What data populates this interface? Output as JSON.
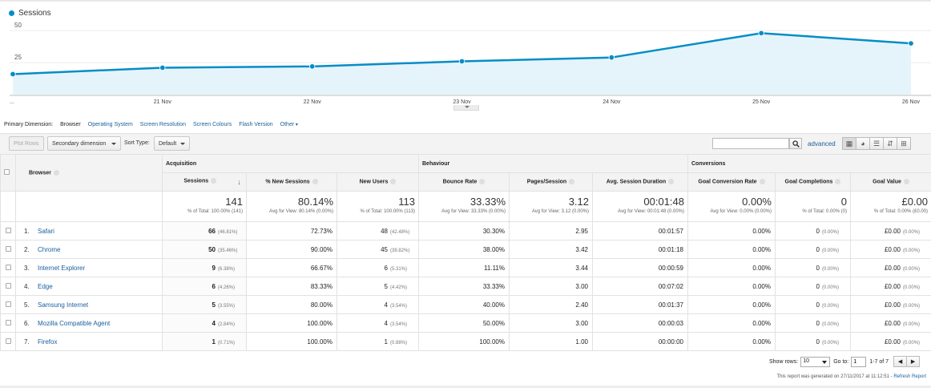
{
  "chart": {
    "legend": "Sessions",
    "color": "#058dc7",
    "fill": "#e5f4fb"
  },
  "chart_data": {
    "type": "area",
    "title": "",
    "series": [
      {
        "name": "Sessions",
        "values": [
          16,
          21,
          22,
          26,
          29,
          48,
          40
        ]
      }
    ],
    "x_labels": [
      "...",
      "21 Nov",
      "22 Nov",
      "23 Nov",
      "24 Nov",
      "25 Nov",
      "26 Nov"
    ],
    "y_ticks": [
      25,
      50
    ],
    "ylim": [
      0,
      67
    ],
    "grid": true
  },
  "primary_dimension": {
    "label": "Primary Dimension:",
    "current": "Browser",
    "options": [
      "Operating System",
      "Screen Resolution",
      "Screen Colours",
      "Flash Version",
      "Other"
    ]
  },
  "toolbar": {
    "plot_rows": "Plot Rows",
    "secondary_dimension": "Secondary dimension",
    "sort_type_label": "Sort Type:",
    "sort_type_value": "Default",
    "search_value": "",
    "advanced": "advanced"
  },
  "table": {
    "groups": {
      "acquisition": "Acquisition",
      "behaviour": "Behaviour",
      "conversions": "Conversions"
    },
    "dimension_header": "Browser",
    "columns": [
      "Sessions",
      "% New Sessions",
      "New Users",
      "Bounce Rate",
      "Pages/Session",
      "Avg. Session Duration",
      "Goal Conversion Rate",
      "Goal Completions",
      "Goal Value"
    ],
    "totals": [
      {
        "value": "141",
        "sub": "% of Total: 100.00% (141)"
      },
      {
        "value": "80.14%",
        "sub": "Avg for View: 80.14% (0.00%)"
      },
      {
        "value": "113",
        "sub": "% of Total: 100.00% (113)"
      },
      {
        "value": "33.33%",
        "sub": "Avg for View: 33.33% (0.00%)"
      },
      {
        "value": "3.12",
        "sub": "Avg for View: 3.12 (0.00%)"
      },
      {
        "value": "00:01:48",
        "sub": "Avg for View: 00:01:48 (0.00%)"
      },
      {
        "value": "0.00%",
        "sub": "Avg for View: 0.00% (0.00%)"
      },
      {
        "value": "0",
        "sub": "% of Total: 0.00% (0)"
      },
      {
        "value": "£0.00",
        "sub": "% of Total: 0.00% (£0.00)"
      }
    ],
    "rows": [
      {
        "idx": "1.",
        "browser": "Safari",
        "sessions": "66",
        "sessions_pct": "(46.81%)",
        "new_sessions": "72.73%",
        "new_users": "48",
        "new_users_pct": "(42.48%)",
        "bounce": "30.30%",
        "pages": "2.95",
        "duration": "00:01:57",
        "gcr": "0.00%",
        "gc": "0",
        "gc_pct": "(0.00%)",
        "gv": "£0.00",
        "gv_pct": "(0.00%)"
      },
      {
        "idx": "2.",
        "browser": "Chrome",
        "sessions": "50",
        "sessions_pct": "(35.46%)",
        "new_sessions": "90.00%",
        "new_users": "45",
        "new_users_pct": "(39.82%)",
        "bounce": "38.00%",
        "pages": "3.42",
        "duration": "00:01:18",
        "gcr": "0.00%",
        "gc": "0",
        "gc_pct": "(0.00%)",
        "gv": "£0.00",
        "gv_pct": "(0.00%)"
      },
      {
        "idx": "3.",
        "browser": "Internet Explorer",
        "sessions": "9",
        "sessions_pct": "(6.38%)",
        "new_sessions": "66.67%",
        "new_users": "6",
        "new_users_pct": "(5.31%)",
        "bounce": "11.11%",
        "pages": "3.44",
        "duration": "00:00:59",
        "gcr": "0.00%",
        "gc": "0",
        "gc_pct": "(0.00%)",
        "gv": "£0.00",
        "gv_pct": "(0.00%)"
      },
      {
        "idx": "4.",
        "browser": "Edge",
        "sessions": "6",
        "sessions_pct": "(4.26%)",
        "new_sessions": "83.33%",
        "new_users": "5",
        "new_users_pct": "(4.42%)",
        "bounce": "33.33%",
        "pages": "3.00",
        "duration": "00:07:02",
        "gcr": "0.00%",
        "gc": "0",
        "gc_pct": "(0.00%)",
        "gv": "£0.00",
        "gv_pct": "(0.00%)"
      },
      {
        "idx": "5.",
        "browser": "Samsung Internet",
        "sessions": "5",
        "sessions_pct": "(3.55%)",
        "new_sessions": "80.00%",
        "new_users": "4",
        "new_users_pct": "(3.54%)",
        "bounce": "40.00%",
        "pages": "2.40",
        "duration": "00:01:37",
        "gcr": "0.00%",
        "gc": "0",
        "gc_pct": "(0.00%)",
        "gv": "£0.00",
        "gv_pct": "(0.00%)"
      },
      {
        "idx": "6.",
        "browser": "Mozilla Compatible Agent",
        "sessions": "4",
        "sessions_pct": "(2.84%)",
        "new_sessions": "100.00%",
        "new_users": "4",
        "new_users_pct": "(3.54%)",
        "bounce": "50.00%",
        "pages": "3.00",
        "duration": "00:00:03",
        "gcr": "0.00%",
        "gc": "0",
        "gc_pct": "(0.00%)",
        "gv": "£0.00",
        "gv_pct": "(0.00%)"
      },
      {
        "idx": "7.",
        "browser": "Firefox",
        "sessions": "1",
        "sessions_pct": "(0.71%)",
        "new_sessions": "100.00%",
        "new_users": "1",
        "new_users_pct": "(0.88%)",
        "bounce": "100.00%",
        "pages": "1.00",
        "duration": "00:00:00",
        "gcr": "0.00%",
        "gc": "0",
        "gc_pct": "(0.00%)",
        "gv": "£0.00",
        "gv_pct": "(0.00%)"
      }
    ]
  },
  "pager": {
    "show_rows_label": "Show rows:",
    "show_rows_value": "10",
    "goto_label": "Go to:",
    "goto_value": "1",
    "range": "1-7 of 7"
  },
  "footer": {
    "text": "This report was generated on 27/11/2017 at 11:12:51 - ",
    "refresh": "Refresh Report"
  }
}
